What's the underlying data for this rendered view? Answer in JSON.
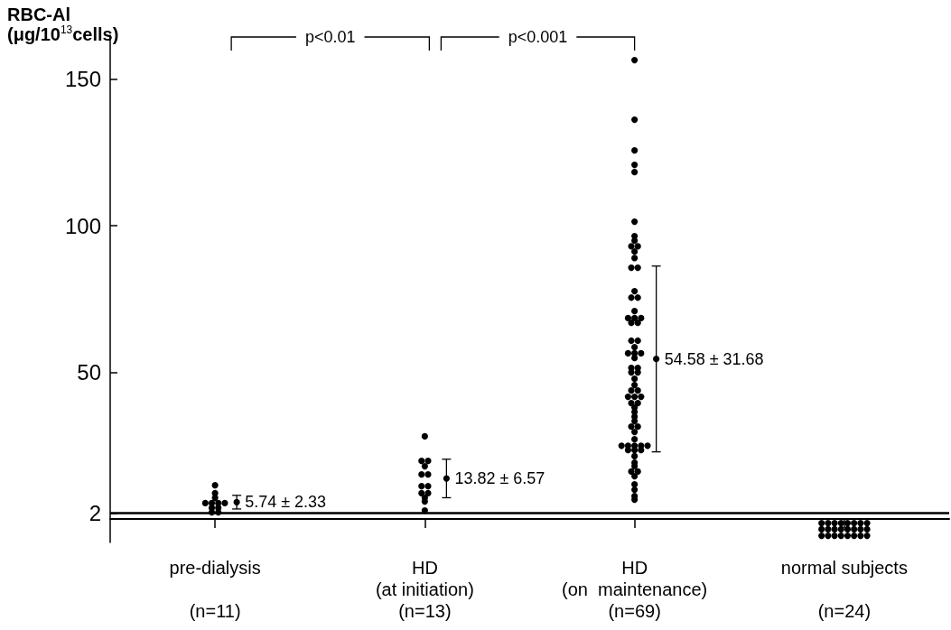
{
  "chart_data": {
    "type": "scatter",
    "ylabel": "RBC-Al\n(μg/10$^{13}$cells)",
    "categories": [
      "pre-dialysis\n\n(n=11)",
      "HD\n(at initiation)\n(n=13)",
      "HD\n(on  maintenance)\n(n=69)",
      "normal subjects\n\n(n=24)"
    ],
    "ylim": [
      -8,
      165
    ],
    "yticks": [
      2,
      50,
      100,
      150
    ],
    "ref_lines": [
      {
        "axis": "y",
        "value": 2,
        "color": "#000000"
      }
    ],
    "annotations": [
      "p<0.01",
      "p<0.001"
    ],
    "marker": "circle",
    "grid": false,
    "legend": false,
    "series": [
      {
        "color": "#000000",
        "x": [
          "pre-dialysis\n\n(n=11)",
          "pre-dialysis\n\n(n=11)",
          "pre-dialysis\n\n(n=11)",
          "pre-dialysis\n\n(n=11)",
          "pre-dialysis\n\n(n=11)",
          "pre-dialysis\n\n(n=11)",
          "pre-dialysis\n\n(n=11)",
          "pre-dialysis\n\n(n=11)",
          "pre-dialysis\n\n(n=11)",
          "pre-dialysis\n\n(n=11)",
          "pre-dialysis\n\n(n=11)"
        ],
        "values": [
          11.5,
          8.8,
          7.2,
          5.4,
          5.4,
          5.4,
          5.4,
          3.8,
          3.8,
          2.3,
          2.3
        ]
      },
      {
        "color": "#000000",
        "x": [
          "HD\n(at initiation)\n(n=13)",
          "HD\n(at initiation)\n(n=13)",
          "HD\n(at initiation)\n(n=13)",
          "HD\n(at initiation)\n(n=13)",
          "HD\n(at initiation)\n(n=13)",
          "HD\n(at initiation)\n(n=13)",
          "HD\n(at initiation)\n(n=13)",
          "HD\n(at initiation)\n(n=13)",
          "HD\n(at initiation)\n(n=13)",
          "HD\n(at initiation)\n(n=13)",
          "HD\n(at initiation)\n(n=13)",
          "HD\n(at initiation)\n(n=13)",
          "HD\n(at initiation)\n(n=13)"
        ],
        "values": [
          28.2,
          19.8,
          19.8,
          18,
          15.2,
          15.2,
          11.2,
          11.2,
          8.8,
          8.8,
          7.2,
          6,
          2.9
        ]
      },
      {
        "color": "#000000",
        "x": [
          "HD\n(on  maintenance)\n(n=69)",
          "HD\n(on  maintenance)\n(n=69)",
          "HD\n(on  maintenance)\n(n=69)",
          "HD\n(on  maintenance)\n(n=69)",
          "HD\n(on  maintenance)\n(n=69)",
          "HD\n(on  maintenance)\n(n=69)",
          "HD\n(on  maintenance)\n(n=69)",
          "HD\n(on  maintenance)\n(n=69)",
          "HD\n(on  maintenance)\n(n=69)",
          "HD\n(on  maintenance)\n(n=69)",
          "HD\n(on  maintenance)\n(n=69)",
          "HD\n(on  maintenance)\n(n=69)",
          "HD\n(on  maintenance)\n(n=69)",
          "HD\n(on  maintenance)\n(n=69)",
          "HD\n(on  maintenance)\n(n=69)",
          "HD\n(on  maintenance)\n(n=69)",
          "HD\n(on  maintenance)\n(n=69)",
          "HD\n(on  maintenance)\n(n=69)",
          "HD\n(on  maintenance)\n(n=69)",
          "HD\n(on  maintenance)\n(n=69)",
          "HD\n(on  maintenance)\n(n=69)",
          "HD\n(on  maintenance)\n(n=69)",
          "HD\n(on  maintenance)\n(n=69)",
          "HD\n(on  maintenance)\n(n=69)",
          "HD\n(on  maintenance)\n(n=69)",
          "HD\n(on  maintenance)\n(n=69)",
          "HD\n(on  maintenance)\n(n=69)",
          "HD\n(on  maintenance)\n(n=69)",
          "HD\n(on  maintenance)\n(n=69)",
          "HD\n(on  maintenance)\n(n=69)",
          "HD\n(on  maintenance)\n(n=69)",
          "HD\n(on  maintenance)\n(n=69)",
          "HD\n(on  maintenance)\n(n=69)",
          "HD\n(on  maintenance)\n(n=69)",
          "HD\n(on  maintenance)\n(n=69)",
          "HD\n(on  maintenance)\n(n=69)",
          "HD\n(on  maintenance)\n(n=69)",
          "HD\n(on  maintenance)\n(n=69)",
          "HD\n(on  maintenance)\n(n=69)",
          "HD\n(on  maintenance)\n(n=69)",
          "HD\n(on  maintenance)\n(n=69)",
          "HD\n(on  maintenance)\n(n=69)",
          "HD\n(on  maintenance)\n(n=69)",
          "HD\n(on  maintenance)\n(n=69)",
          "HD\n(on  maintenance)\n(n=69)",
          "HD\n(on  maintenance)\n(n=69)",
          "HD\n(on  maintenance)\n(n=69)",
          "HD\n(on  maintenance)\n(n=69)",
          "HD\n(on  maintenance)\n(n=69)",
          "HD\n(on  maintenance)\n(n=69)",
          "HD\n(on  maintenance)\n(n=69)",
          "HD\n(on  maintenance)\n(n=69)",
          "HD\n(on  maintenance)\n(n=69)",
          "HD\n(on  maintenance)\n(n=69)",
          "HD\n(on  maintenance)\n(n=69)",
          "HD\n(on  maintenance)\n(n=69)",
          "HD\n(on  maintenance)\n(n=69)",
          "HD\n(on  maintenance)\n(n=69)",
          "HD\n(on  maintenance)\n(n=69)",
          "HD\n(on  maintenance)\n(n=69)",
          "HD\n(on  maintenance)\n(n=69)",
          "HD\n(on  maintenance)\n(n=69)",
          "HD\n(on  maintenance)\n(n=69)",
          "HD\n(on  maintenance)\n(n=69)",
          "HD\n(on  maintenance)\n(n=69)",
          "HD\n(on  maintenance)\n(n=69)",
          "HD\n(on  maintenance)\n(n=69)",
          "HD\n(on  maintenance)\n(n=69)",
          "HD\n(on  maintenance)\n(n=69)"
        ],
        "values": [
          156.5,
          136.2,
          125.7,
          120.8,
          118.3,
          101.4,
          96.5,
          94.9,
          93,
          93,
          91.2,
          89,
          85.7,
          85.7,
          77.7,
          75.5,
          75.5,
          70.9,
          68.5,
          68.5,
          68.5,
          66.9,
          66.9,
          60.8,
          60.8,
          58.6,
          56.5,
          56.5,
          56.5,
          54.9,
          51.5,
          51.5,
          50,
          50,
          47.8,
          45.7,
          43.8,
          43.8,
          41.7,
          41.7,
          41.7,
          39.5,
          39.5,
          38,
          36.5,
          34.9,
          33.4,
          31.5,
          31.5,
          29.7,
          27.2,
          25,
          25,
          25,
          25,
          25,
          23.5,
          23.5,
          23.5,
          21.4,
          19.2,
          18,
          16.2,
          16.2,
          14.6,
          11.8,
          10,
          7.8,
          6.6
        ]
      },
      {
        "color": "#000000",
        "x": [
          "normal subjects\n\n(n=24)",
          "normal subjects\n\n(n=24)",
          "normal subjects\n\n(n=24)",
          "normal subjects\n\n(n=24)",
          "normal subjects\n\n(n=24)",
          "normal subjects\n\n(n=24)",
          "normal subjects\n\n(n=24)",
          "normal subjects\n\n(n=24)",
          "normal subjects\n\n(n=24)",
          "normal subjects\n\n(n=24)",
          "normal subjects\n\n(n=24)",
          "normal subjects\n\n(n=24)",
          "normal subjects\n\n(n=24)",
          "normal subjects\n\n(n=24)",
          "normal subjects\n\n(n=24)",
          "normal subjects\n\n(n=24)",
          "normal subjects\n\n(n=24)",
          "normal subjects\n\n(n=24)",
          "normal subjects\n\n(n=24)",
          "normal subjects\n\n(n=24)",
          "normal subjects\n\n(n=24)",
          "normal subjects\n\n(n=24)",
          "normal subjects\n\n(n=24)",
          "normal subjects\n\n(n=24)"
        ],
        "values": [
          -1.4,
          -1.4,
          -1.4,
          -1.4,
          -1.4,
          -1.4,
          -1.4,
          -1.4,
          -3.5,
          -3.5,
          -3.5,
          -3.5,
          -3.5,
          -3.5,
          -3.5,
          -3.5,
          -5.7,
          -5.7,
          -5.7,
          -5.7,
          -5.7,
          -5.7,
          -5.7,
          -5.7
        ]
      },
      {
        "color": "#000000",
        "x": [
          "pre-dialysis\n\n(n=11)",
          "HD\n(at initiation)\n(n=13)",
          "HD\n(on  maintenance)\n(n=69)"
        ],
        "values": [
          5.74,
          13.82,
          54.58
        ],
        "errors": [
          2.33,
          6.57,
          31.68
        ],
        "value_labels": [
          "5.74 ± 2.33",
          "13.82 ± 6.57",
          "54.58 ± 31.68"
        ]
      }
    ]
  }
}
